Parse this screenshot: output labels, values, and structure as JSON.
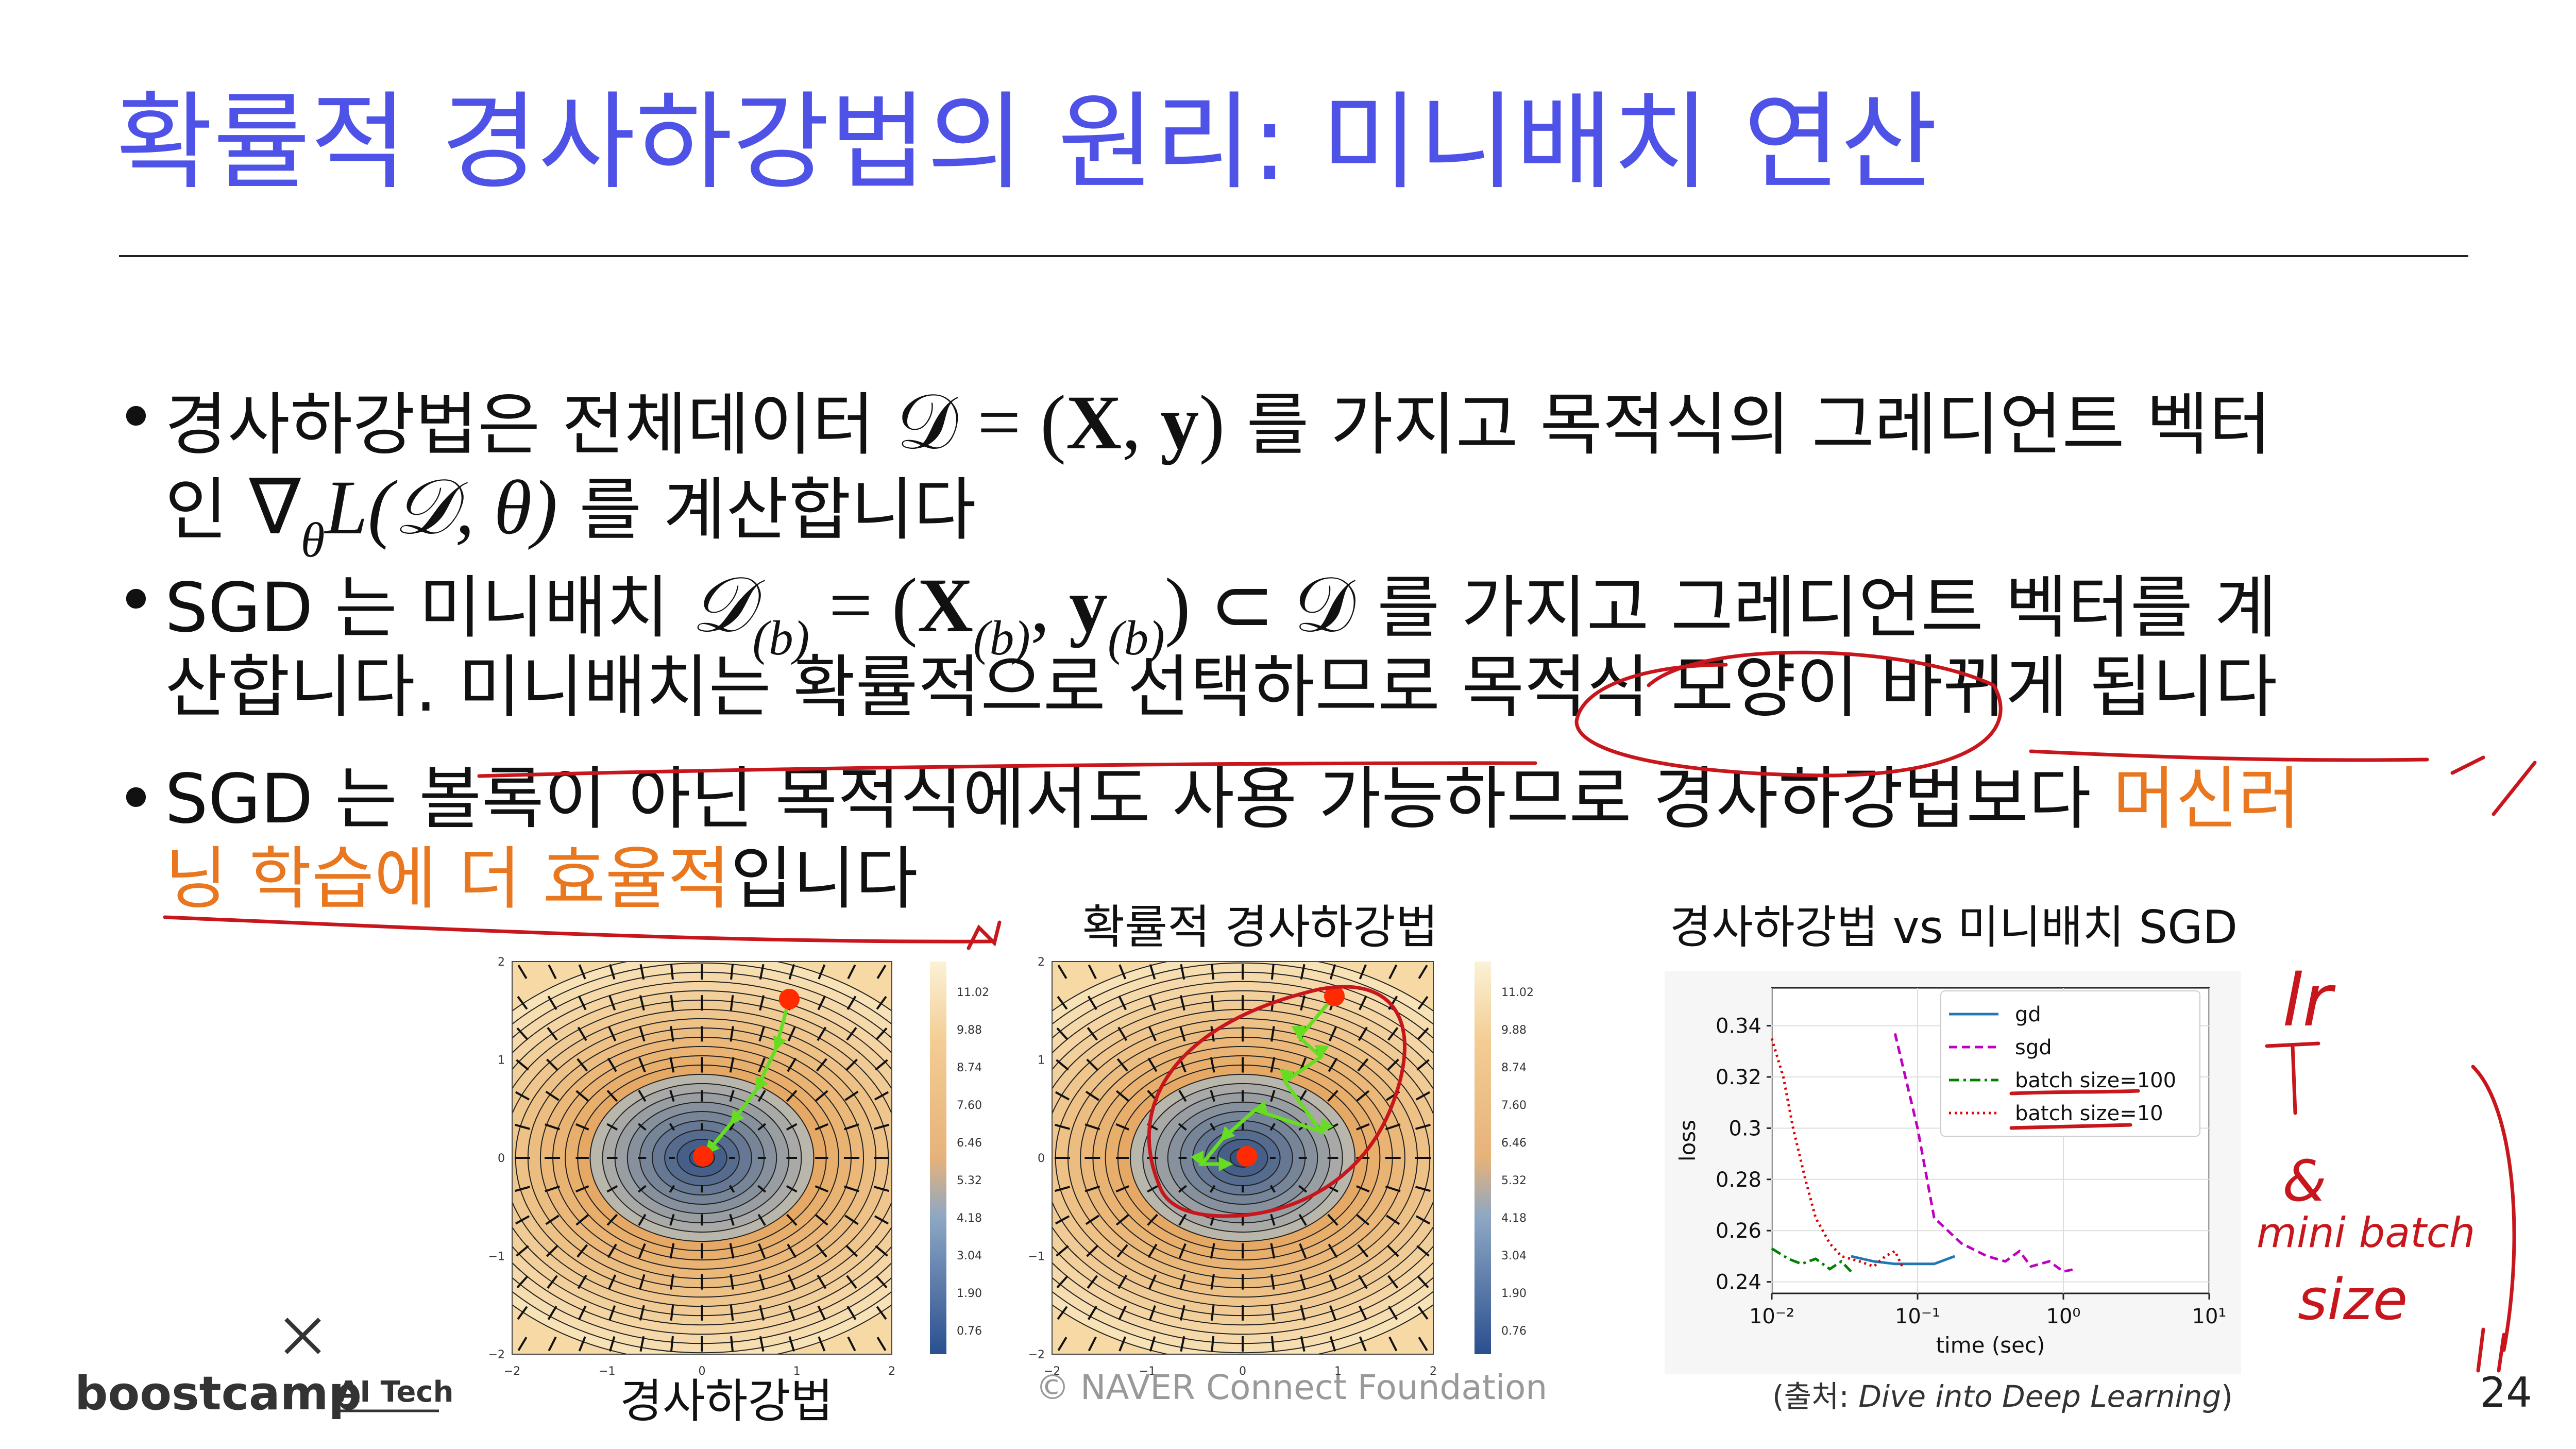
{
  "header": {
    "title": "확률적 경사하강법의 원리: 미니배치 연산"
  },
  "bullets": [
    [
      [
        "경사하강법은 전체데이터 ",
        "𝒟 = (",
        "X",
        ", ",
        "y",
        ")",
        " 를 가지고 목적식의 그레디언트 벡터"
      ],
      [
        "인 ",
        "∇",
        "θ",
        "L(𝒟, θ)",
        " 를 계산합니다"
      ]
    ],
    [
      [
        "SGD 는 미니배치 ",
        "𝒟",
        "(b)",
        " = (",
        "X",
        "(b)",
        ", ",
        "y",
        "(b)",
        ") ⊂ 𝒟",
        " 를 가지고 그레디언트 벡터를 계"
      ],
      [
        "산합니다. 미니배치는 확률적으로 선택하므로 목적식 모양이 바뀌게 됩니다"
      ]
    ],
    [
      [
        "SGD 는 볼록이 아닌 목적식에서도 사용 가능하므로 경사하강법보다 ",
        "머신러"
      ],
      [
        "닝 학습에 더 효율적",
        "입니다"
      ]
    ]
  ],
  "figures": {
    "contour_captions": [
      "경사하강법",
      "확률적 경사하강법"
    ],
    "contour_ticks": [
      "−2",
      "−1",
      "0",
      "1",
      "2"
    ],
    "colorbar_ticks": [
      "11.02",
      "9.88",
      "8.74",
      "7.60",
      "6.46",
      "5.32",
      "4.18",
      "3.04",
      "1.90",
      "0.76"
    ]
  },
  "chart_data": {
    "type": "line",
    "title": "경사하강법 vs 미니배치 SGD",
    "xlabel": "time (sec)",
    "ylabel": "loss",
    "xscale": "log",
    "xlim": [
      0.01,
      10
    ],
    "ylim": [
      0.2355,
      0.3548
    ],
    "xticks": [
      {
        "value": 0.01,
        "label": "10⁻²"
      },
      {
        "value": 0.1,
        "label": "10⁻¹"
      },
      {
        "value": 1,
        "label": "10⁰"
      },
      {
        "value": 10,
        "label": "10¹"
      }
    ],
    "yticks": [
      0.24,
      0.26,
      0.28,
      0.3,
      0.32,
      0.34
    ],
    "grid": true,
    "legend": "upper right",
    "series": [
      {
        "name": "gd",
        "color": "#1f77b4",
        "dash": "solid",
        "x": [
          0.035,
          0.05,
          0.07,
          0.1,
          0.13,
          0.18
        ],
        "values": [
          0.25,
          0.248,
          0.247,
          0.247,
          0.247,
          0.25
        ]
      },
      {
        "name": "sgd",
        "color": "#bf00bf",
        "dash": "dashed",
        "x": [
          0.07,
          0.1,
          0.13,
          0.2,
          0.3,
          0.4,
          0.5,
          0.6,
          0.8,
          1.0,
          1.2
        ],
        "values": [
          0.337,
          0.3,
          0.265,
          0.255,
          0.25,
          0.248,
          0.252,
          0.246,
          0.248,
          0.244,
          0.245
        ]
      },
      {
        "name": "batch size=100",
        "color": "#008000",
        "dash": "dashdot",
        "x": [
          0.01,
          0.013,
          0.016,
          0.02,
          0.025,
          0.03,
          0.035
        ],
        "values": [
          0.253,
          0.249,
          0.247,
          0.249,
          0.245,
          0.248,
          0.244
        ]
      },
      {
        "name": "batch size=10",
        "color": "#e00000",
        "dash": "dotted",
        "x": [
          0.01,
          0.012,
          0.014,
          0.017,
          0.02,
          0.025,
          0.03,
          0.04,
          0.05,
          0.06,
          0.07,
          0.08
        ],
        "values": [
          0.335,
          0.32,
          0.3,
          0.28,
          0.265,
          0.255,
          0.25,
          0.248,
          0.246,
          0.25,
          0.252,
          0.245
        ]
      }
    ]
  },
  "annotations": [
    "lr",
    "&",
    "mini batch",
    "size"
  ],
  "footer": {
    "logo": "boostcamp",
    "logo_sub": "AI Tech",
    "copyright": "©  NAVER Connect Foundation",
    "source_prefix": "(출처: ",
    "source_title": "Dive into Deep Learning",
    "source_suffix": ")",
    "page": "24"
  }
}
